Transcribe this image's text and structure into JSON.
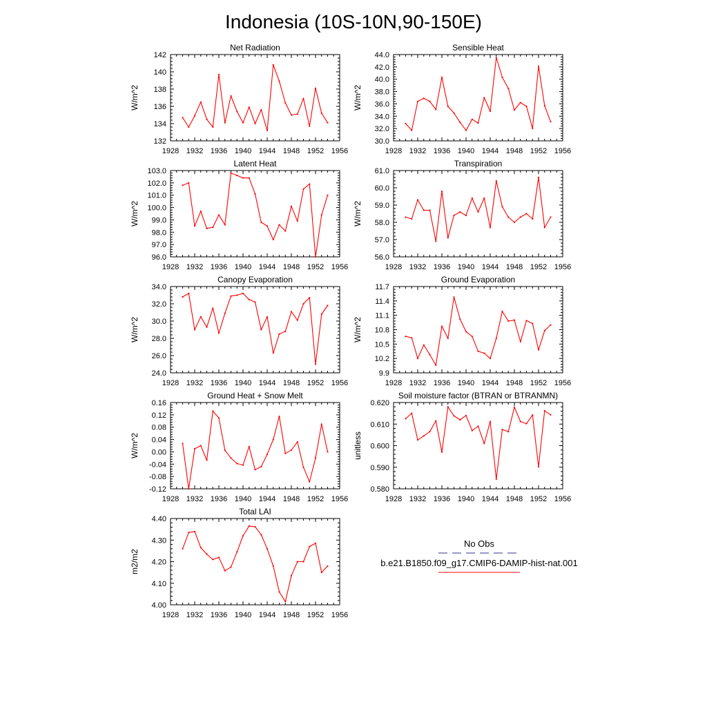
{
  "title": "Indonesia (10S-10N,90-150E)",
  "colors": {
    "model": "#ff0000",
    "obs": "#5a5aa0"
  },
  "legend": {
    "obs_label": "No Obs",
    "model_label": "b.e21.B1850.f09_g17.CMIP6-DAMIP-hist-nat.001"
  },
  "chart_data": [
    {
      "type": "line",
      "title": "Net Radiation",
      "ylabel": "W/m^2",
      "xlim": [
        1928,
        1956
      ],
      "ylim": [
        132,
        142
      ],
      "xticks": [
        "1928",
        "1932",
        "1936",
        "1940",
        "1944",
        "1948",
        "1952",
        "1956"
      ],
      "yticks": [
        "132",
        "134",
        "136",
        "138",
        "140",
        "142"
      ],
      "series": [
        {
          "x": [
            1930,
            1931,
            1932,
            1933,
            1934,
            1935,
            1936,
            1937,
            1938,
            1939,
            1940,
            1941,
            1942,
            1943,
            1944,
            1945,
            1946,
            1947,
            1948,
            1949,
            1950,
            1951,
            1952,
            1953,
            1954
          ],
          "values": [
            134.7,
            133.6,
            134.9,
            136.5,
            134.5,
            133.6,
            139.7,
            134.1,
            137.2,
            135.4,
            134.1,
            135.9,
            134.0,
            135.6,
            133.2,
            140.8,
            138.9,
            136.4,
            135.0,
            135.1,
            136.9,
            133.7,
            138.1,
            135.2,
            134.1
          ]
        }
      ]
    },
    {
      "type": "line",
      "title": "Sensible Heat",
      "ylabel": "W/m^2",
      "xlim": [
        1928,
        1956
      ],
      "ylim": [
        30,
        44
      ],
      "xticks": [
        "1928",
        "1932",
        "1936",
        "1940",
        "1944",
        "1948",
        "1952",
        "1956"
      ],
      "yticks": [
        "30.0",
        "32.0",
        "34.0",
        "36.0",
        "38.0",
        "40.0",
        "42.0",
        "44.0"
      ],
      "series": [
        {
          "x": [
            1930,
            1931,
            1932,
            1933,
            1934,
            1935,
            1936,
            1937,
            1938,
            1939,
            1940,
            1941,
            1942,
            1943,
            1944,
            1945,
            1946,
            1947,
            1948,
            1949,
            1950,
            1951,
            1952,
            1953,
            1954
          ],
          "values": [
            32.8,
            31.7,
            36.4,
            36.9,
            36.4,
            35.1,
            40.3,
            35.6,
            34.5,
            33.0,
            31.7,
            33.5,
            32.9,
            37.0,
            34.8,
            43.5,
            40.3,
            38.5,
            35.0,
            36.2,
            35.6,
            32.0,
            42.1,
            35.7,
            33.1
          ]
        }
      ]
    },
    {
      "type": "line",
      "title": "Latent Heat",
      "ylabel": "W/m^2",
      "xlim": [
        1928,
        1956
      ],
      "ylim": [
        96,
        103
      ],
      "xticks": [
        "1928",
        "1932",
        "1936",
        "1940",
        "1944",
        "1948",
        "1952",
        "1956"
      ],
      "yticks": [
        "96.0",
        "97.0",
        "98.0",
        "99.0",
        "100.0",
        "101.0",
        "102.0",
        "103.0"
      ],
      "series": [
        {
          "x": [
            1930,
            1931,
            1932,
            1933,
            1934,
            1935,
            1936,
            1937,
            1938,
            1939,
            1940,
            1941,
            1942,
            1943,
            1944,
            1945,
            1946,
            1947,
            1948,
            1949,
            1950,
            1951,
            1952,
            1953,
            1954
          ],
          "values": [
            101.8,
            102.0,
            98.5,
            99.7,
            98.3,
            98.4,
            99.4,
            98.6,
            102.8,
            102.6,
            102.4,
            102.4,
            101.1,
            98.8,
            98.5,
            97.4,
            98.6,
            98.1,
            100.1,
            98.9,
            101.5,
            101.9,
            96.0,
            99.4,
            101.0
          ]
        }
      ]
    },
    {
      "type": "line",
      "title": "Transpiration",
      "ylabel": "W/m^2",
      "xlim": [
        1928,
        1956
      ],
      "ylim": [
        56,
        61
      ],
      "xticks": [
        "1928",
        "1932",
        "1936",
        "1940",
        "1944",
        "1948",
        "1952",
        "1956"
      ],
      "yticks": [
        "56.0",
        "57.0",
        "58.0",
        "59.0",
        "60.0",
        "61.0"
      ],
      "series": [
        {
          "x": [
            1930,
            1931,
            1932,
            1933,
            1934,
            1935,
            1936,
            1937,
            1938,
            1939,
            1940,
            1941,
            1942,
            1943,
            1944,
            1945,
            1946,
            1947,
            1948,
            1949,
            1950,
            1951,
            1952,
            1953,
            1954
          ],
          "values": [
            58.3,
            58.2,
            59.3,
            58.7,
            58.7,
            56.9,
            59.8,
            57.1,
            58.4,
            58.6,
            58.4,
            59.4,
            58.6,
            59.4,
            57.7,
            60.4,
            58.9,
            58.3,
            58.0,
            58.3,
            58.5,
            58.2,
            60.6,
            57.7,
            58.3
          ]
        }
      ]
    },
    {
      "type": "line",
      "title": "Canopy Evaporation",
      "ylabel": "W/m^2",
      "xlim": [
        1928,
        1956
      ],
      "ylim": [
        24,
        34
      ],
      "xticks": [
        "1928",
        "1932",
        "1936",
        "1940",
        "1944",
        "1948",
        "1952",
        "1956"
      ],
      "yticks": [
        "24.0",
        "26.0",
        "28.0",
        "30.0",
        "32.0",
        "34.0"
      ],
      "series": [
        {
          "x": [
            1930,
            1931,
            1932,
            1933,
            1934,
            1935,
            1936,
            1937,
            1938,
            1939,
            1940,
            1941,
            1942,
            1943,
            1944,
            1945,
            1946,
            1947,
            1948,
            1949,
            1950,
            1951,
            1952,
            1953,
            1954
          ],
          "values": [
            32.8,
            33.2,
            29.0,
            30.5,
            29.3,
            31.5,
            28.6,
            30.9,
            32.9,
            33.0,
            33.2,
            32.5,
            32.2,
            29.0,
            30.5,
            26.3,
            28.5,
            28.8,
            31.1,
            30.1,
            32.0,
            32.7,
            25.0,
            30.8,
            31.8
          ]
        }
      ]
    },
    {
      "type": "line",
      "title": "Ground Evaporation",
      "ylabel": "W/m^2",
      "xlim": [
        1928,
        1956
      ],
      "ylim": [
        9.9,
        11.7
      ],
      "xticks": [
        "1928",
        "1932",
        "1936",
        "1940",
        "1944",
        "1948",
        "1952",
        "1956"
      ],
      "yticks": [
        "9.9",
        "10.2",
        "10.5",
        "10.8",
        "11.1",
        "11.4",
        "11.7"
      ],
      "series": [
        {
          "x": [
            1930,
            1931,
            1932,
            1933,
            1934,
            1935,
            1936,
            1937,
            1938,
            1939,
            1940,
            1941,
            1942,
            1943,
            1944,
            1945,
            1946,
            1947,
            1948,
            1949,
            1950,
            1951,
            1952,
            1953,
            1954
          ],
          "values": [
            10.66,
            10.63,
            10.2,
            10.48,
            10.28,
            10.06,
            10.87,
            10.62,
            11.48,
            11.02,
            10.76,
            10.66,
            10.35,
            10.31,
            10.2,
            10.62,
            11.18,
            10.98,
            11.0,
            10.55,
            10.99,
            10.93,
            10.38,
            10.78,
            10.9
          ]
        }
      ]
    },
    {
      "type": "line",
      "title": "Ground Heat + Snow Melt",
      "ylabel": "W/m^2",
      "xlim": [
        1928,
        1956
      ],
      "ylim": [
        -0.12,
        0.16
      ],
      "xticks": [
        "1928",
        "1932",
        "1936",
        "1940",
        "1944",
        "1948",
        "1952",
        "1956"
      ],
      "yticks": [
        "-0.12",
        "-0.08",
        "-0.04",
        "0.00",
        "0.04",
        "0.08",
        "0.12",
        "0.16"
      ],
      "series": [
        {
          "x": [
            1930,
            1931,
            1932,
            1933,
            1934,
            1935,
            1936,
            1937,
            1938,
            1939,
            1940,
            1941,
            1942,
            1943,
            1944,
            1945,
            1946,
            1947,
            1948,
            1949,
            1950,
            1951,
            1952,
            1953,
            1954
          ],
          "values": [
            0.027,
            -0.12,
            0.01,
            0.02,
            -0.027,
            0.132,
            0.11,
            0.005,
            -0.02,
            -0.038,
            -0.043,
            0.017,
            -0.058,
            -0.048,
            -0.008,
            0.04,
            0.115,
            -0.005,
            0.006,
            0.032,
            -0.05,
            -0.097,
            -0.02,
            0.09,
            0.0
          ]
        }
      ]
    },
    {
      "type": "line",
      "title": "Soil moisture factor (BTRAN or BTRANMN)",
      "ylabel": "unitless",
      "xlim": [
        1928,
        1956
      ],
      "ylim": [
        0.58,
        0.62
      ],
      "xticks": [
        "1928",
        "1932",
        "1936",
        "1940",
        "1944",
        "1948",
        "1952",
        "1956"
      ],
      "yticks": [
        "0.580",
        "0.590",
        "0.600",
        "0.610",
        "0.620"
      ],
      "series": [
        {
          "x": [
            1930,
            1931,
            1932,
            1933,
            1934,
            1935,
            1936,
            1937,
            1938,
            1939,
            1940,
            1941,
            1942,
            1943,
            1944,
            1945,
            1946,
            1947,
            1948,
            1949,
            1950,
            1951,
            1952,
            1953,
            1954
          ],
          "values": [
            0.6125,
            0.615,
            0.6027,
            0.6045,
            0.6065,
            0.6115,
            0.597,
            0.618,
            0.6138,
            0.612,
            0.614,
            0.607,
            0.609,
            0.601,
            0.6112,
            0.5845,
            0.6075,
            0.6065,
            0.6178,
            0.6112,
            0.6102,
            0.6142,
            0.5902,
            0.6162,
            0.6143
          ]
        }
      ]
    },
    {
      "type": "line",
      "title": "Total LAI",
      "ylabel": "m2/m2",
      "xlim": [
        1928,
        1956
      ],
      "ylim": [
        4.0,
        4.4
      ],
      "xticks": [
        "1928",
        "1932",
        "1936",
        "1940",
        "1944",
        "1948",
        "1952",
        "1956"
      ],
      "yticks": [
        "4.00",
        "4.10",
        "4.20",
        "4.30",
        "4.40"
      ],
      "series": [
        {
          "x": [
            1930,
            1931,
            1932,
            1933,
            1934,
            1935,
            1936,
            1937,
            1938,
            1939,
            1940,
            1941,
            1942,
            1943,
            1944,
            1945,
            1946,
            1947,
            1948,
            1949,
            1950,
            1951,
            1952,
            1953,
            1954
          ],
          "values": [
            4.26,
            4.335,
            4.34,
            4.265,
            4.235,
            4.21,
            4.22,
            4.158,
            4.175,
            4.245,
            4.32,
            4.365,
            4.362,
            4.325,
            4.26,
            4.18,
            4.06,
            4.015,
            4.135,
            4.2,
            4.2,
            4.27,
            4.285,
            4.15,
            4.18
          ]
        }
      ]
    }
  ]
}
